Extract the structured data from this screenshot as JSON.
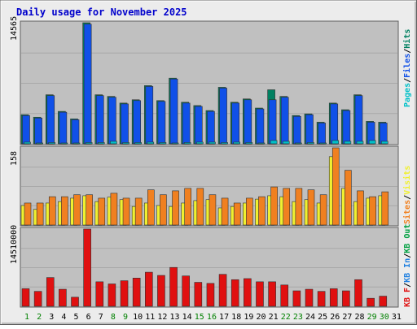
{
  "title": "Daily usage for November 2025",
  "colors": {
    "background": "#ececec",
    "plot_bg": "#c0c0c0",
    "gridline": "#a8a8a8",
    "title": "#0000cc",
    "hits": "#008060",
    "files": "#1050e8",
    "pages": "#00c0c8",
    "visits": "#f0f030",
    "sites": "#f08020",
    "kb_in": "#2080e0",
    "kb_out": "#00a040",
    "kb_f": "#e01010",
    "day_weekday": "#000000",
    "day_weekend": "#008000"
  },
  "chart_data": [
    {
      "type": "bar",
      "title": "Daily usage for November 2025",
      "panel": "hits_files_pages",
      "ymax_label": "14565",
      "ylim": [
        0,
        14565
      ],
      "legend": [
        "Pages",
        "Files",
        "Hits"
      ],
      "categories": [
        "1",
        "2",
        "3",
        "4",
        "5",
        "6",
        "7",
        "8",
        "9",
        "10",
        "11",
        "12",
        "13",
        "14",
        "15",
        "16",
        "17",
        "18",
        "19",
        "20",
        "21",
        "22",
        "23",
        "24",
        "25",
        "26",
        "27",
        "28",
        "29",
        "30",
        "31"
      ],
      "series": [
        {
          "name": "Hits",
          "values": [
            3500,
            3200,
            5900,
            3900,
            3000,
            14565,
            5900,
            5700,
            4900,
            5300,
            7000,
            5200,
            7900,
            5000,
            4600,
            4000,
            6800,
            5000,
            5400,
            4300,
            6500,
            5700,
            3400,
            3600,
            2600,
            4900,
            4100,
            5900,
            2700,
            2600,
            0
          ]
        },
        {
          "name": "Files",
          "values": [
            3400,
            3100,
            5800,
            3800,
            2900,
            14400,
            5800,
            5600,
            4800,
            5200,
            6900,
            5100,
            7800,
            4900,
            4500,
            3900,
            6700,
            4900,
            5300,
            4200,
            5300,
            5600,
            3300,
            3500,
            2500,
            4800,
            4000,
            5800,
            2600,
            2500,
            0
          ]
        },
        {
          "name": "Pages",
          "values": [
            200,
            100,
            150,
            100,
            100,
            150,
            150,
            300,
            150,
            150,
            200,
            150,
            100,
            150,
            200,
            200,
            150,
            200,
            150,
            100,
            400,
            300,
            100,
            150,
            100,
            400,
            300,
            300,
            400,
            300,
            0
          ]
        }
      ]
    },
    {
      "type": "bar",
      "panel": "visits_sites",
      "ymax_label": "158",
      "ylim": [
        0,
        158
      ],
      "legend": [
        "Sites",
        "Visits"
      ],
      "categories": [
        "1",
        "2",
        "3",
        "4",
        "5",
        "6",
        "7",
        "8",
        "9",
        "10",
        "11",
        "12",
        "13",
        "14",
        "15",
        "16",
        "17",
        "18",
        "19",
        "20",
        "21",
        "22",
        "23",
        "24",
        "25",
        "26",
        "27",
        "28",
        "29",
        "30",
        "31"
      ],
      "series": [
        {
          "name": "Visits",
          "values": [
            40,
            32,
            45,
            48,
            55,
            60,
            48,
            57,
            52,
            38,
            45,
            40,
            38,
            45,
            50,
            52,
            35,
            38,
            45,
            53,
            60,
            58,
            48,
            52,
            45,
            140,
            75,
            48,
            55,
            60,
            0
          ]
        },
        {
          "name": "Sites",
          "values": [
            45,
            45,
            58,
            58,
            62,
            62,
            55,
            65,
            55,
            55,
            72,
            62,
            70,
            75,
            75,
            62,
            55,
            45,
            55,
            58,
            78,
            75,
            75,
            72,
            62,
            158,
            112,
            70,
            58,
            68,
            0
          ]
        }
      ]
    },
    {
      "type": "bar",
      "panel": "kbytes",
      "ymax_label": "14510000",
      "ylim": [
        0,
        14510000
      ],
      "legend": [
        "KB F",
        "KB In",
        "KB Out"
      ],
      "categories": [
        "1",
        "2",
        "3",
        "4",
        "5",
        "6",
        "7",
        "8",
        "9",
        "10",
        "11",
        "12",
        "13",
        "14",
        "15",
        "16",
        "17",
        "18",
        "19",
        "20",
        "21",
        "22",
        "23",
        "24",
        "25",
        "26",
        "27",
        "28",
        "29",
        "30",
        "31"
      ],
      "series": [
        {
          "name": "KB F",
          "values": [
            3300000,
            2800000,
            5400000,
            3200000,
            1700000,
            14510000,
            4600000,
            4200000,
            4800000,
            5300000,
            6400000,
            5800000,
            7300000,
            5700000,
            4500000,
            4300000,
            6000000,
            5000000,
            5200000,
            4600000,
            4600000,
            4000000,
            2900000,
            3200000,
            2800000,
            3300000,
            2900000,
            5000000,
            1500000,
            1900000,
            0
          ]
        }
      ]
    }
  ],
  "x_axis": {
    "labels": [
      "1",
      "2",
      "3",
      "4",
      "5",
      "6",
      "7",
      "8",
      "9",
      "10",
      "11",
      "12",
      "13",
      "14",
      "15",
      "16",
      "17",
      "18",
      "19",
      "20",
      "21",
      "22",
      "23",
      "24",
      "25",
      "26",
      "27",
      "28",
      "29",
      "30",
      "31"
    ],
    "weekend": [
      1,
      2,
      8,
      9,
      15,
      16,
      22,
      23,
      29,
      30
    ]
  }
}
